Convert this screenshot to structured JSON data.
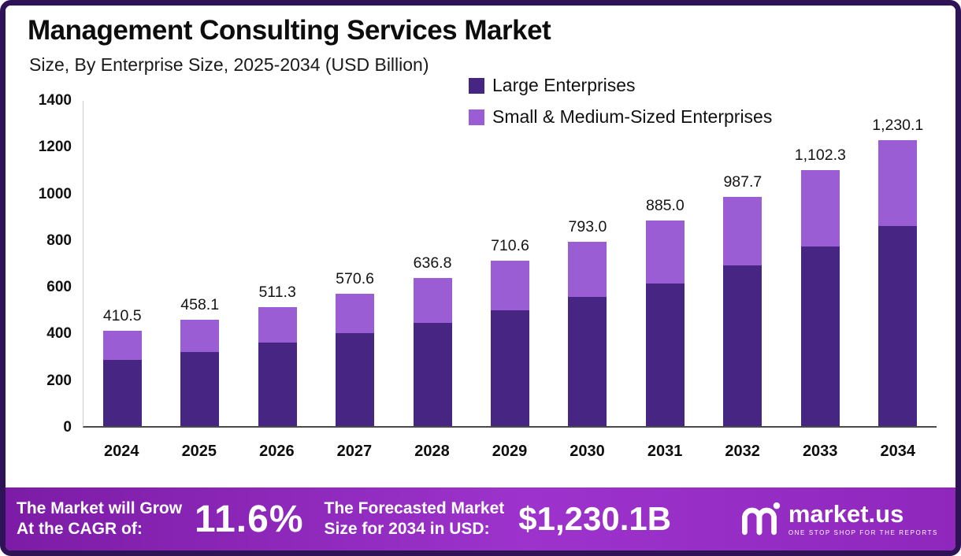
{
  "header": {
    "title": "Management Consulting Services Market",
    "subtitle": "Size, By Enterprise Size, 2025-2034 (USD Billion)"
  },
  "legend": [
    {
      "label": "Large Enterprises",
      "color": "#472583"
    },
    {
      "label": "Small & Medium-Sized Enterprises",
      "color": "#9a5dd3"
    }
  ],
  "chart_data": {
    "type": "bar",
    "stacked": true,
    "title": "Management Consulting Services Market",
    "subtitle": "Size, By Enterprise Size, 2025-2034 (USD Billion)",
    "xlabel": "",
    "ylabel": "",
    "categories": [
      "2024",
      "2025",
      "2026",
      "2027",
      "2028",
      "2029",
      "2030",
      "2031",
      "2032",
      "2033",
      "2034"
    ],
    "series": [
      {
        "name": "Large Enterprises",
        "color": "#472583",
        "values": [
          285,
          320,
          360,
          400,
          445,
          497,
          555,
          614,
          690,
          772,
          860
        ]
      },
      {
        "name": "Small & Medium-Sized Enterprises",
        "color": "#9a5dd3",
        "values": [
          125.5,
          138.1,
          151.3,
          170.6,
          191.8,
          213.6,
          238.0,
          271.0,
          297.7,
          330.3,
          370.1
        ]
      }
    ],
    "totals": [
      410.5,
      458.1,
      511.3,
      570.6,
      636.8,
      710.6,
      793.0,
      885.0,
      987.7,
      1102.3,
      1230.1
    ],
    "total_labels": [
      "410.5",
      "458.1",
      "511.3",
      "570.6",
      "636.8",
      "710.6",
      "793.0",
      "885.0",
      "987.7",
      "1,102.3",
      "1,230.1"
    ],
    "ylim": [
      0,
      1400
    ],
    "yticks": [
      0,
      200,
      400,
      600,
      800,
      1000,
      1200,
      1400
    ],
    "grid": false,
    "legend_position": "top-right"
  },
  "footer": {
    "cagr_label_line1": "The Market will Grow",
    "cagr_label_line2": "At the CAGR of:",
    "cagr_value": "11.6%",
    "forecast_label_line1": "The Forecasted Market",
    "forecast_label_line2": "Size for 2034 in USD:",
    "forecast_value": "$1,230.1B",
    "brand_name": "market.us",
    "brand_tagline": "ONE STOP SHOP FOR THE REPORTS"
  },
  "colors": {
    "frame_border": "#2e1356",
    "large_enterprises": "#472583",
    "sme": "#9a5dd3",
    "footer_gradient_start": "#7c1ca6",
    "footer_gradient_end": "#8f27bd"
  }
}
